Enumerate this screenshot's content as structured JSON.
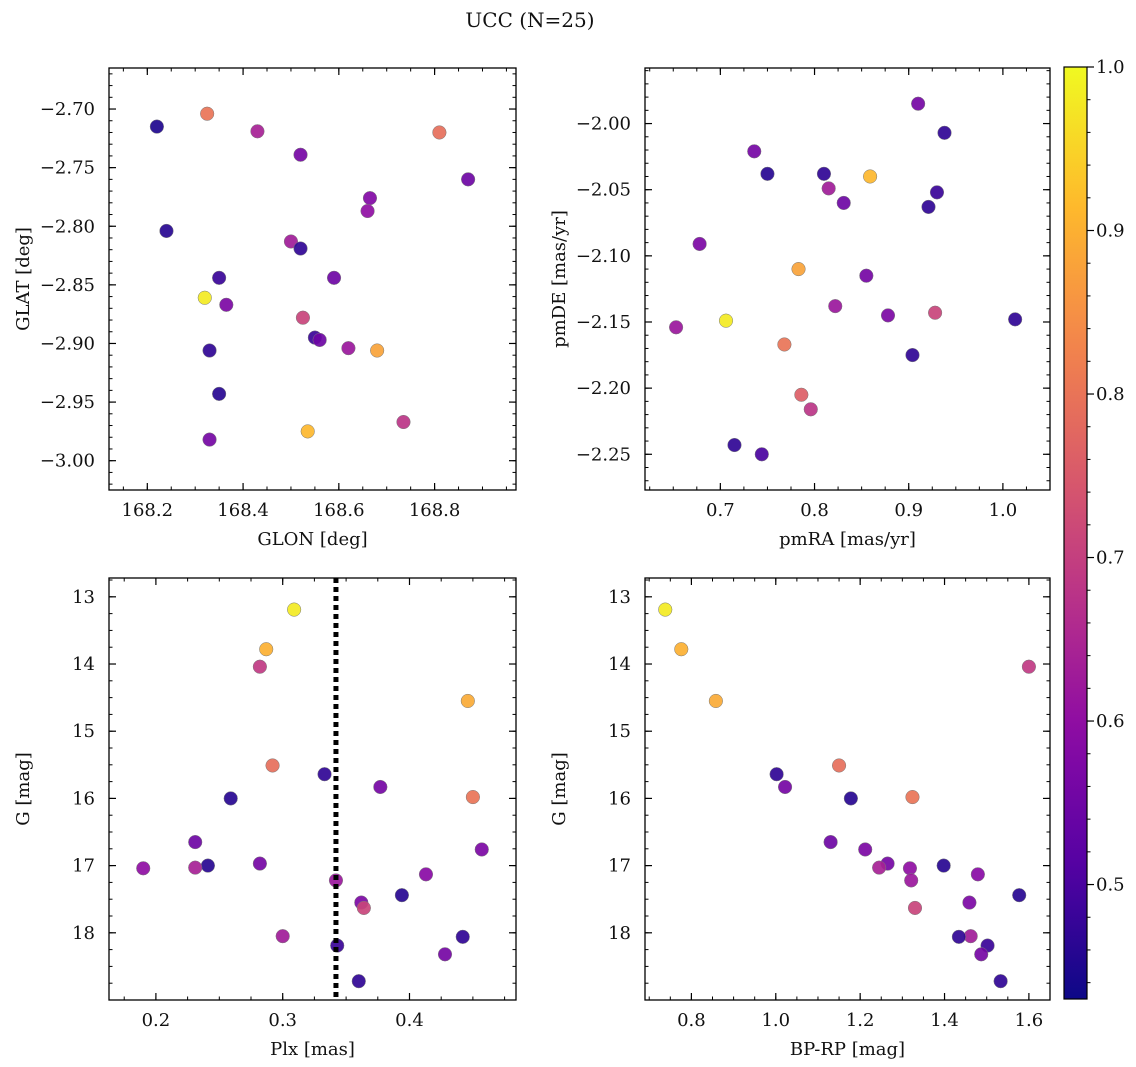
{
  "figure": {
    "title": "UCC (N=25)"
  },
  "colorbar": {
    "colormap": "plasma",
    "range": [
      0.43,
      1.0
    ],
    "ticks": [
      "0.5",
      "0.6",
      "0.7",
      "0.8",
      "0.9",
      "1.0"
    ],
    "tick_values": [
      0.5,
      0.6,
      0.7,
      0.8,
      0.9,
      1.0
    ]
  },
  "chart_data": [
    {
      "type": "scatter",
      "title": "",
      "xlabel": "GLON [deg]",
      "ylabel": "GLAT [deg]",
      "xlim": [
        168.12,
        168.97
      ],
      "ylim": [
        -3.025,
        -2.665
      ],
      "xticks": [
        168.2,
        168.4,
        168.6,
        168.8
      ],
      "xtick_labels": [
        "168.2",
        "168.4",
        "168.6",
        "168.8"
      ],
      "yticks": [
        -2.7,
        -2.75,
        -2.8,
        -2.85,
        -2.9,
        -2.95,
        -3.0
      ],
      "ytick_labels": [
        "−2.70",
        "−2.75",
        "−2.80",
        "−2.85",
        "−2.90",
        "−2.95",
        "−3.00"
      ],
      "y_inverted": false,
      "points": [
        {
          "x": 168.22,
          "y": -2.715,
          "c": 0.45
        },
        {
          "x": 168.325,
          "y": -2.704,
          "c": 0.8
        },
        {
          "x": 168.43,
          "y": -2.719,
          "c": 0.64
        },
        {
          "x": 168.52,
          "y": -2.739,
          "c": 0.56
        },
        {
          "x": 168.81,
          "y": -2.72,
          "c": 0.79
        },
        {
          "x": 168.87,
          "y": -2.76,
          "c": 0.55
        },
        {
          "x": 168.665,
          "y": -2.776,
          "c": 0.58
        },
        {
          "x": 168.66,
          "y": -2.787,
          "c": 0.6
        },
        {
          "x": 168.24,
          "y": -2.804,
          "c": 0.46
        },
        {
          "x": 168.5,
          "y": -2.813,
          "c": 0.63
        },
        {
          "x": 168.52,
          "y": -2.819,
          "c": 0.47
        },
        {
          "x": 168.35,
          "y": -2.844,
          "c": 0.48
        },
        {
          "x": 168.59,
          "y": -2.844,
          "c": 0.55
        },
        {
          "x": 168.32,
          "y": -2.861,
          "c": 0.98
        },
        {
          "x": 168.365,
          "y": -2.867,
          "c": 0.57
        },
        {
          "x": 168.525,
          "y": -2.878,
          "c": 0.71
        },
        {
          "x": 168.55,
          "y": -2.895,
          "c": 0.48
        },
        {
          "x": 168.56,
          "y": -2.897,
          "c": 0.55
        },
        {
          "x": 168.62,
          "y": -2.904,
          "c": 0.62
        },
        {
          "x": 168.33,
          "y": -2.906,
          "c": 0.47
        },
        {
          "x": 168.68,
          "y": -2.906,
          "c": 0.88
        },
        {
          "x": 168.35,
          "y": -2.943,
          "c": 0.46
        },
        {
          "x": 168.735,
          "y": -2.967,
          "c": 0.68
        },
        {
          "x": 168.535,
          "y": -2.975,
          "c": 0.91
        },
        {
          "x": 168.33,
          "y": -2.982,
          "c": 0.56
        }
      ]
    },
    {
      "type": "scatter",
      "title": "",
      "xlabel": "pmRA [mas/yr]",
      "ylabel": "pmDE [mas/yr]",
      "xlim": [
        0.62,
        1.05
      ],
      "ylim": [
        -2.277,
        -1.958
      ],
      "xticks": [
        0.7,
        0.8,
        0.9,
        1.0
      ],
      "xtick_labels": [
        "0.7",
        "0.8",
        "0.9",
        "1.0"
      ],
      "yticks": [
        -2.0,
        -2.05,
        -2.1,
        -2.15,
        -2.2,
        -2.25
      ],
      "ytick_labels": [
        "−2.00",
        "−2.05",
        "−2.10",
        "−2.15",
        "−2.20",
        "−2.25"
      ],
      "y_inverted": false,
      "points": [
        {
          "x": 0.91,
          "y": -1.985,
          "c": 0.56
        },
        {
          "x": 0.938,
          "y": -2.007,
          "c": 0.47
        },
        {
          "x": 0.736,
          "y": -2.021,
          "c": 0.56
        },
        {
          "x": 0.75,
          "y": -2.038,
          "c": 0.46
        },
        {
          "x": 0.81,
          "y": -2.038,
          "c": 0.47
        },
        {
          "x": 0.859,
          "y": -2.04,
          "c": 0.91
        },
        {
          "x": 0.815,
          "y": -2.049,
          "c": 0.63
        },
        {
          "x": 0.93,
          "y": -2.052,
          "c": 0.48
        },
        {
          "x": 0.831,
          "y": -2.06,
          "c": 0.55
        },
        {
          "x": 0.921,
          "y": -2.063,
          "c": 0.47
        },
        {
          "x": 0.678,
          "y": -2.091,
          "c": 0.57
        },
        {
          "x": 0.783,
          "y": -2.11,
          "c": 0.88
        },
        {
          "x": 0.855,
          "y": -2.115,
          "c": 0.56
        },
        {
          "x": 0.822,
          "y": -2.138,
          "c": 0.62
        },
        {
          "x": 0.928,
          "y": -2.143,
          "c": 0.71
        },
        {
          "x": 0.878,
          "y": -2.145,
          "c": 0.57
        },
        {
          "x": 1.013,
          "y": -2.148,
          "c": 0.47
        },
        {
          "x": 0.706,
          "y": -2.149,
          "c": 0.98
        },
        {
          "x": 0.653,
          "y": -2.154,
          "c": 0.62
        },
        {
          "x": 0.768,
          "y": -2.167,
          "c": 0.8
        },
        {
          "x": 0.904,
          "y": -2.175,
          "c": 0.47
        },
        {
          "x": 0.786,
          "y": -2.205,
          "c": 0.76
        },
        {
          "x": 0.796,
          "y": -2.216,
          "c": 0.68
        },
        {
          "x": 0.715,
          "y": -2.243,
          "c": 0.47
        },
        {
          "x": 0.744,
          "y": -2.25,
          "c": 0.5
        }
      ]
    },
    {
      "type": "scatter",
      "title": "",
      "xlabel": "Plx [mas]",
      "ylabel": "G [mag]",
      "xlim": [
        0.163,
        0.484
      ],
      "ylim": [
        12.72,
        19.0
      ],
      "xticks": [
        0.2,
        0.3,
        0.4
      ],
      "xtick_labels": [
        "0.2",
        "0.3",
        "0.4"
      ],
      "yticks": [
        13,
        14,
        15,
        16,
        17,
        18
      ],
      "ytick_labels": [
        "13",
        "14",
        "15",
        "16",
        "17",
        "18"
      ],
      "y_inverted": true,
      "vline": {
        "x": 0.342,
        "style": "dotted"
      },
      "points": [
        {
          "x": 0.309,
          "y": 13.19,
          "c": 0.98
        },
        {
          "x": 0.287,
          "y": 13.78,
          "c": 0.9
        },
        {
          "x": 0.282,
          "y": 14.04,
          "c": 0.69
        },
        {
          "x": 0.446,
          "y": 14.55,
          "c": 0.89
        },
        {
          "x": 0.292,
          "y": 15.51,
          "c": 0.79
        },
        {
          "x": 0.333,
          "y": 15.64,
          "c": 0.47
        },
        {
          "x": 0.377,
          "y": 15.83,
          "c": 0.56
        },
        {
          "x": 0.259,
          "y": 16.0,
          "c": 0.46
        },
        {
          "x": 0.45,
          "y": 15.98,
          "c": 0.8
        },
        {
          "x": 0.231,
          "y": 16.65,
          "c": 0.55
        },
        {
          "x": 0.457,
          "y": 16.76,
          "c": 0.57
        },
        {
          "x": 0.282,
          "y": 16.97,
          "c": 0.56
        },
        {
          "x": 0.241,
          "y": 17.0,
          "c": 0.46
        },
        {
          "x": 0.19,
          "y": 17.04,
          "c": 0.6
        },
        {
          "x": 0.231,
          "y": 17.03,
          "c": 0.64
        },
        {
          "x": 0.413,
          "y": 17.13,
          "c": 0.59
        },
        {
          "x": 0.342,
          "y": 17.22,
          "c": 0.62
        },
        {
          "x": 0.394,
          "y": 17.44,
          "c": 0.46
        },
        {
          "x": 0.362,
          "y": 17.55,
          "c": 0.57
        },
        {
          "x": 0.364,
          "y": 17.63,
          "c": 0.71
        },
        {
          "x": 0.3,
          "y": 18.05,
          "c": 0.63
        },
        {
          "x": 0.442,
          "y": 18.06,
          "c": 0.47
        },
        {
          "x": 0.343,
          "y": 18.19,
          "c": 0.48
        },
        {
          "x": 0.428,
          "y": 18.32,
          "c": 0.56
        },
        {
          "x": 0.36,
          "y": 18.72,
          "c": 0.47
        }
      ]
    },
    {
      "type": "scatter",
      "title": "",
      "xlabel": "BP-RP [mag]",
      "ylabel": "G [mag]",
      "xlim": [
        0.69,
        1.65
      ],
      "ylim": [
        12.72,
        19.0
      ],
      "xticks": [
        0.8,
        1.0,
        1.2,
        1.4,
        1.6
      ],
      "xtick_labels": [
        "0.8",
        "1.0",
        "1.2",
        "1.4",
        "1.6"
      ],
      "yticks": [
        13,
        14,
        15,
        16,
        17,
        18
      ],
      "ytick_labels": [
        "13",
        "14",
        "15",
        "16",
        "17",
        "18"
      ],
      "y_inverted": true,
      "points": [
        {
          "x": 0.738,
          "y": 13.19,
          "c": 0.98
        },
        {
          "x": 0.776,
          "y": 13.78,
          "c": 0.9
        },
        {
          "x": 0.858,
          "y": 14.55,
          "c": 0.89
        },
        {
          "x": 1.6,
          "y": 14.04,
          "c": 0.69
        },
        {
          "x": 1.15,
          "y": 15.51,
          "c": 0.79
        },
        {
          "x": 1.002,
          "y": 15.64,
          "c": 0.47
        },
        {
          "x": 1.022,
          "y": 15.83,
          "c": 0.56
        },
        {
          "x": 1.178,
          "y": 16.0,
          "c": 0.46
        },
        {
          "x": 1.324,
          "y": 15.98,
          "c": 0.8
        },
        {
          "x": 1.13,
          "y": 16.65,
          "c": 0.55
        },
        {
          "x": 1.212,
          "y": 16.76,
          "c": 0.57
        },
        {
          "x": 1.265,
          "y": 16.97,
          "c": 0.56
        },
        {
          "x": 1.245,
          "y": 17.03,
          "c": 0.64
        },
        {
          "x": 1.318,
          "y": 17.04,
          "c": 0.6
        },
        {
          "x": 1.398,
          "y": 17.0,
          "c": 0.46
        },
        {
          "x": 1.479,
          "y": 17.13,
          "c": 0.59
        },
        {
          "x": 1.321,
          "y": 17.22,
          "c": 0.62
        },
        {
          "x": 1.577,
          "y": 17.44,
          "c": 0.46
        },
        {
          "x": 1.459,
          "y": 17.55,
          "c": 0.57
        },
        {
          "x": 1.33,
          "y": 17.63,
          "c": 0.71
        },
        {
          "x": 1.462,
          "y": 18.05,
          "c": 0.63
        },
        {
          "x": 1.434,
          "y": 18.06,
          "c": 0.47
        },
        {
          "x": 1.502,
          "y": 18.19,
          "c": 0.48
        },
        {
          "x": 1.487,
          "y": 18.32,
          "c": 0.56
        },
        {
          "x": 1.533,
          "y": 18.72,
          "c": 0.47
        }
      ]
    }
  ]
}
